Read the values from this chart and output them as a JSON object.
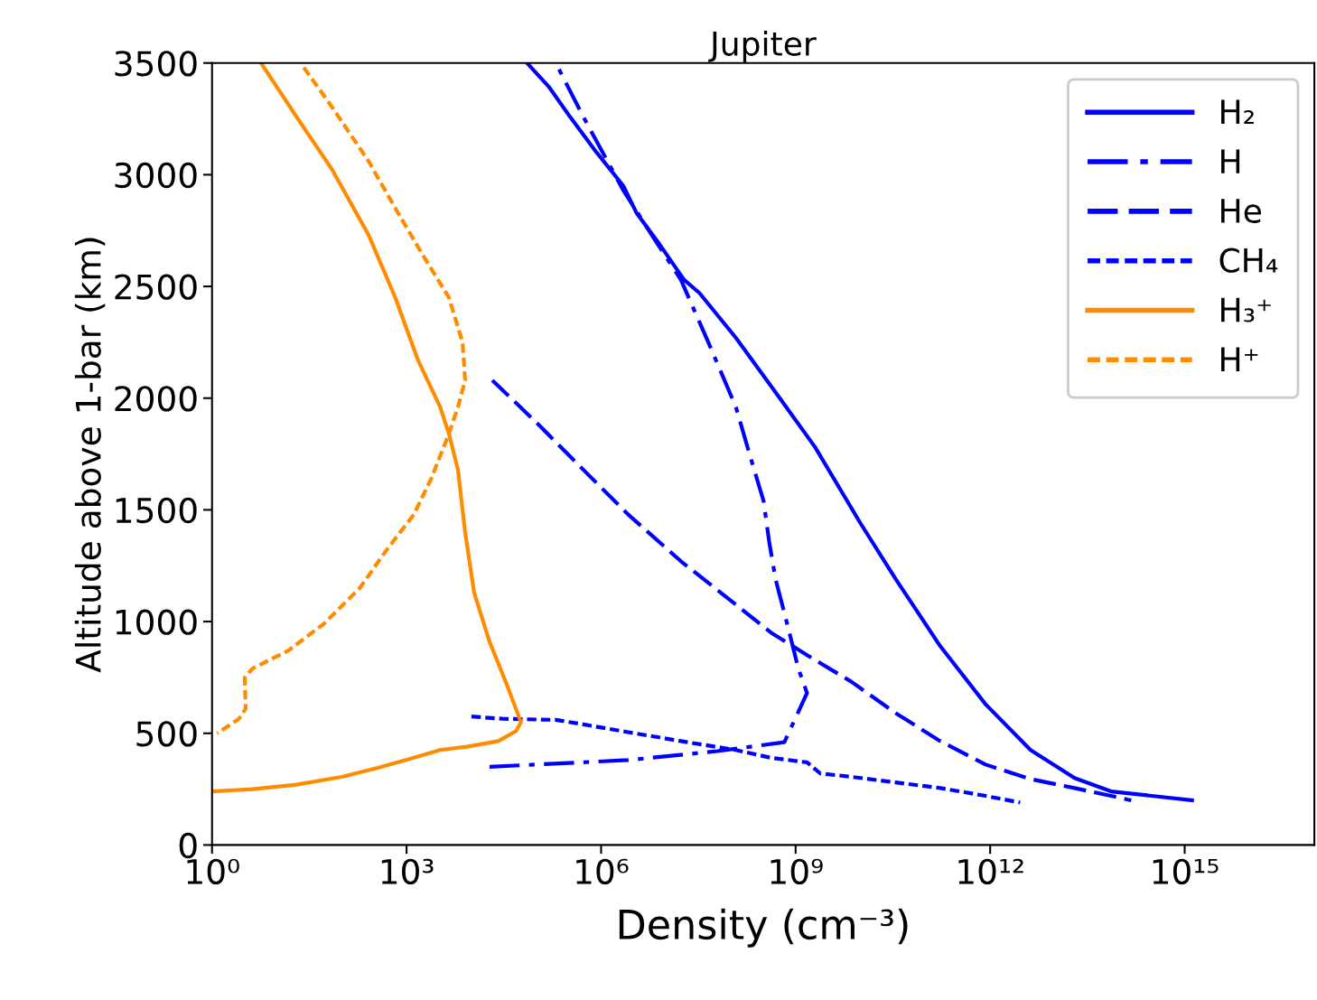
{
  "chart_data": {
    "type": "line",
    "title": "Jupiter",
    "xlabel": "Density (cm⁻³)",
    "ylabel": "Altitude above 1-bar (km)",
    "log": "x",
    "xlim": [
      1,
      1e+17
    ],
    "ylim": [
      0,
      3500
    ],
    "xticks": [
      {
        "value": 1,
        "label": "10⁰"
      },
      {
        "value": 1000,
        "label": "10³"
      },
      {
        "value": 1000000,
        "label": "10⁶"
      },
      {
        "value": 1000000000,
        "label": "10⁹"
      },
      {
        "value": 1000000000000,
        "label": "10¹²"
      },
      {
        "value": 1000000000000000,
        "label": "10¹⁵"
      }
    ],
    "yticks": [
      0,
      500,
      1000,
      1500,
      2000,
      2500,
      3000,
      3500
    ],
    "grid": false,
    "legend": "top right",
    "series": [
      {
        "name": "H₂",
        "color": "#0000ff",
        "line_style": "solid",
        "x": [
          72000.0,
          160000.0,
          330000.0,
          850000.0,
          2200000.0,
          3500000.0,
          7900000.0,
          19000000.0,
          33000000.0,
          120000000.0,
          570000000.0,
          2000000000.0,
          10000000000.0,
          35000000000.0,
          170000000000.0,
          850000000000.0,
          4200000000000.0,
          20000000000000.0,
          73000000000000.0,
          1300000000000000.0
        ],
        "values": [
          3500,
          3390,
          3260,
          3100,
          2950,
          2830,
          2690,
          2530,
          2470,
          2270,
          2000,
          1780,
          1440,
          1190,
          890,
          630,
          425,
          300,
          240,
          200
        ]
      },
      {
        "name": "H",
        "color": "#0000ff",
        "line_style": "dashdot",
        "x": [
          19000.0,
          2600000.0,
          62000000.0,
          670000000.0,
          1500000000.0,
          1100000000.0,
          740000000.0,
          490000000.0,
          390000000.0,
          320000000.0,
          190000000.0,
          120000000.0,
          45000000.0,
          17000000.0,
          6700000.0,
          2200000.0,
          530000.0,
          200000.0
        ],
        "values": [
          350,
          380,
          420,
          460,
          680,
          790,
          990,
          1190,
          1360,
          1540,
          1760,
          1960,
          2250,
          2530,
          2710,
          2930,
          3260,
          3500
        ]
      },
      {
        "name": "He",
        "color": "#0000ff",
        "line_style": "dashed",
        "x": [
          21000.0,
          110000.0,
          530000.0,
          2600000.0,
          17000000.0,
          85000000.0,
          420000000.0,
          1500000000.0,
          7300000000.0,
          35000000000.0,
          170000000000.0,
          850000000000.0,
          4200000000000.0,
          20000000000000.0,
          150000000000000.0
        ],
        "values": [
          2080,
          1880,
          1680,
          1480,
          1270,
          1110,
          950,
          850,
          730,
          590,
          465,
          360,
          295,
          255,
          200
        ]
      },
      {
        "name": "CH₄",
        "color": "#0000ff",
        "line_style": "dotted",
        "x": [
          10000.0,
          30000.0,
          200000.0,
          530000.0,
          2600000.0,
          17000000.0,
          120000000.0,
          420000000.0,
          1500000000.0,
          2400000000.0,
          7300000000.0,
          35000000000.0,
          170000000000.0,
          850000000000.0,
          2900000000000.0
        ],
        "values": [
          575,
          565,
          560,
          540,
          505,
          465,
          425,
          390,
          370,
          320,
          305,
          280,
          255,
          220,
          190
        ]
      },
      {
        "name": "H₃⁺",
        "color": "#ff8c00",
        "line_style": "solid",
        "x": [
          5.7,
          20,
          72,
          260,
          670,
          1500,
          3300,
          4500,
          6200,
          8000,
          11000.0,
          19000.0,
          36000.0,
          58000.0,
          49000.0,
          26000.0,
          8500,
          3300,
          1100,
          360,
          100,
          20,
          4.2,
          1
        ],
        "values": [
          3500,
          3260,
          3020,
          2730,
          2450,
          2170,
          1960,
          1840,
          1680,
          1400,
          1130,
          910,
          710,
          550,
          510,
          465,
          440,
          425,
          385,
          345,
          305,
          270,
          250,
          240
        ]
      },
      {
        "name": "H⁺",
        "color": "#ff8c00",
        "line_style": "dotted",
        "x": [
          26,
          72,
          260,
          670,
          1700,
          4500,
          7300,
          8000,
          6200,
          4500,
          2400,
          1300,
          490,
          190,
          53,
          15,
          4.2,
          3.2,
          3.3,
          2.6,
          1.2
        ],
        "values": [
          3480,
          3300,
          3060,
          2850,
          2650,
          2450,
          2250,
          2080,
          1960,
          1840,
          1640,
          1480,
          1320,
          1150,
          990,
          870,
          790,
          750,
          610,
          565,
          500
        ]
      }
    ]
  }
}
